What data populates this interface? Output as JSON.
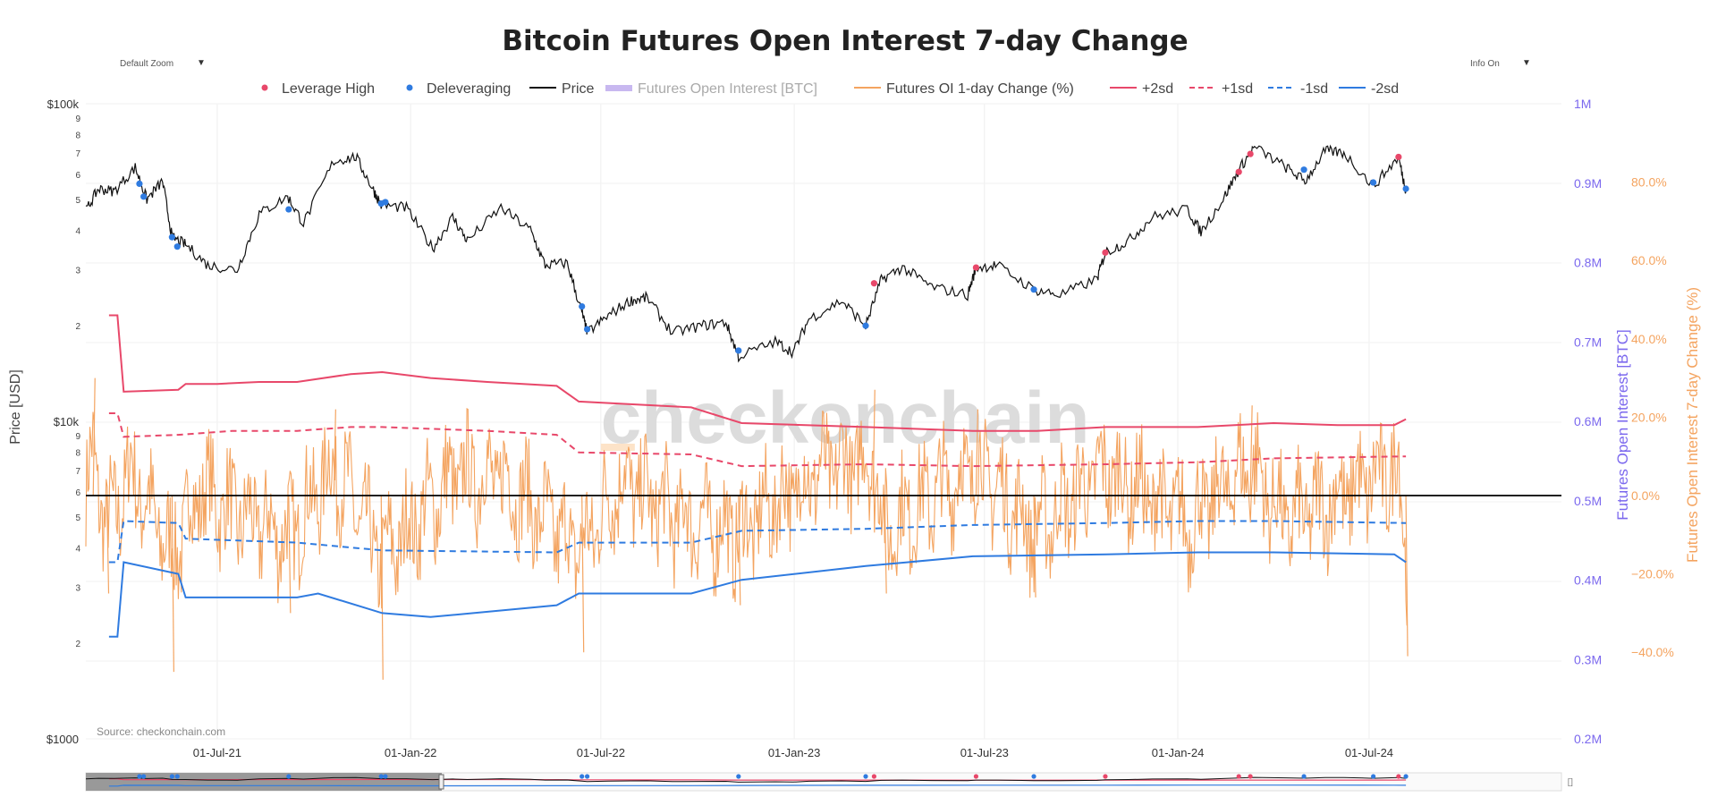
{
  "controls": {
    "zoom_label": "Default Zoom",
    "info_label": "Info On",
    "arrow": "▼"
  },
  "chart_data": {
    "type": "line",
    "title": "Bitcoin Futures Open Interest 7-day Change",
    "source": "Source: checkonchain.com",
    "watermark": "checkonchain",
    "x_ticks": [
      "01-Jul-21",
      "01-Jan-22",
      "01-Jul-22",
      "01-Jan-23",
      "01-Jul-23",
      "01-Jan-24",
      "01-Jul-24"
    ],
    "x_range": [
      "2021-02-26",
      "2024-12-31"
    ],
    "axes": {
      "price": {
        "title": "Price [USD]",
        "scale": "log",
        "range": [
          1000,
          100000
        ],
        "major_labels": [
          "$1000",
          "$10k",
          "$100k"
        ],
        "minor_labels": [
          "2",
          "3",
          "4",
          "5",
          "6",
          "7",
          "8",
          "9"
        ]
      },
      "oi": {
        "title": "Futures Open Interest [BTC]",
        "range": [
          "0.2M",
          "1M"
        ],
        "labels": [
          "0.2M",
          "0.3M",
          "0.4M",
          "0.5M",
          "0.6M",
          "0.7M",
          "0.8M",
          "0.9M",
          "1M"
        ]
      },
      "change": {
        "title": "Futures Open Interest 7-day Change (%)",
        "range": [
          -50,
          80
        ],
        "labels": [
          "−40.0%",
          "−20.0%",
          "0.0%",
          "20.0%",
          "40.0%",
          "60.0%",
          "80.0%"
        ]
      }
    },
    "legend": [
      {
        "name": "Leverage High",
        "kind": "marker",
        "color": "#e8486a"
      },
      {
        "name": "Deleveraging",
        "kind": "marker",
        "color": "#2f7be0"
      },
      {
        "name": "Price",
        "kind": "line",
        "color": "#111111"
      },
      {
        "name": "Futures Open Interest [BTC]",
        "kind": "band",
        "color": "#c8b8f0"
      },
      {
        "name": "Futures OI 1-day Change (%)",
        "kind": "line",
        "color": "#f4a460"
      },
      {
        "name": "+2sd",
        "kind": "line",
        "color": "#e8486a"
      },
      {
        "name": "+1sd",
        "kind": "dash",
        "color": "#e8486a"
      },
      {
        "name": "-1sd",
        "kind": "dash",
        "color": "#2f7be0"
      },
      {
        "name": "-2sd",
        "kind": "line",
        "color": "#2f7be0"
      }
    ],
    "price_series": [
      [
        "2021-02-26",
        46000
      ],
      [
        "2021-03-10",
        54000
      ],
      [
        "2021-03-25",
        53000
      ],
      [
        "2021-04-14",
        63000
      ],
      [
        "2021-04-25",
        50000
      ],
      [
        "2021-05-10",
        57000
      ],
      [
        "2021-05-19",
        38000
      ],
      [
        "2021-06-01",
        36000
      ],
      [
        "2021-06-22",
        31000
      ],
      [
        "2021-07-20",
        30000
      ],
      [
        "2021-08-10",
        45000
      ],
      [
        "2021-09-06",
        51000
      ],
      [
        "2021-09-21",
        42000
      ],
      [
        "2021-10-20",
        66000
      ],
      [
        "2021-11-10",
        68000
      ],
      [
        "2021-11-26",
        54000
      ],
      [
        "2021-12-04",
        48000
      ],
      [
        "2021-12-28",
        47000
      ],
      [
        "2022-01-22",
        35000
      ],
      [
        "2022-02-10",
        44000
      ],
      [
        "2022-02-24",
        37000
      ],
      [
        "2022-03-28",
        47000
      ],
      [
        "2022-04-25",
        40000
      ],
      [
        "2022-05-09",
        31000
      ],
      [
        "2022-05-30",
        31500
      ],
      [
        "2022-06-13",
        22000
      ],
      [
        "2022-06-18",
        19000
      ],
      [
        "2022-07-08",
        21500
      ],
      [
        "2022-07-29",
        24000
      ],
      [
        "2022-08-14",
        24500
      ],
      [
        "2022-09-07",
        19000
      ],
      [
        "2022-10-05",
        20000
      ],
      [
        "2022-10-28",
        20500
      ],
      [
        "2022-11-09",
        16000
      ],
      [
        "2022-12-14",
        17800
      ],
      [
        "2022-12-31",
        16500
      ],
      [
        "2023-01-15",
        21000
      ],
      [
        "2023-02-15",
        24000
      ],
      [
        "2023-03-10",
        20000
      ],
      [
        "2023-03-25",
        28000
      ],
      [
        "2023-04-14",
        30500
      ],
      [
        "2023-05-12",
        26500
      ],
      [
        "2023-06-15",
        25000
      ],
      [
        "2023-06-23",
        30500
      ],
      [
        "2023-07-13",
        31000
      ],
      [
        "2023-08-17",
        26000
      ],
      [
        "2023-09-11",
        25000
      ],
      [
        "2023-10-16",
        28000
      ],
      [
        "2023-10-24",
        34000
      ],
      [
        "2023-11-15",
        37000
      ],
      [
        "2023-12-08",
        44000
      ],
      [
        "2024-01-10",
        46500
      ],
      [
        "2024-01-23",
        39500
      ],
      [
        "2024-02-13",
        50000
      ],
      [
        "2024-02-28",
        62000
      ],
      [
        "2024-03-14",
        73000
      ],
      [
        "2024-04-13",
        63000
      ],
      [
        "2024-05-01",
        57000
      ],
      [
        "2024-05-20",
        71000
      ],
      [
        "2024-06-07",
        70000
      ],
      [
        "2024-07-05",
        55000
      ],
      [
        "2024-07-29",
        68000
      ],
      [
        "2024-08-05",
        53000
      ]
    ],
    "leverage_high_markers": [
      [
        "2023-03-18",
        27200
      ],
      [
        "2023-06-23",
        30500
      ],
      [
        "2023-10-24",
        34000
      ],
      [
        "2024-02-28",
        61000
      ],
      [
        "2024-03-10",
        69500
      ],
      [
        "2024-07-29",
        68000
      ]
    ],
    "deleveraging_markers": [
      [
        "2021-04-18",
        56000
      ],
      [
        "2021-04-22",
        51000
      ],
      [
        "2021-05-19",
        38000
      ],
      [
        "2021-05-24",
        35500
      ],
      [
        "2021-09-07",
        46500
      ],
      [
        "2021-12-04",
        48500
      ],
      [
        "2021-12-08",
        49000
      ],
      [
        "2022-06-13",
        23000
      ],
      [
        "2022-06-18",
        19500
      ],
      [
        "2022-11-09",
        16700
      ],
      [
        "2023-03-10",
        20000
      ],
      [
        "2023-08-17",
        26000
      ],
      [
        "2024-04-30",
        62000
      ],
      [
        "2024-07-05",
        56500
      ],
      [
        "2024-08-05",
        54000
      ]
    ],
    "sd_bands": {
      "plus2": [
        [
          "2021-03-20",
          46
        ],
        [
          "2021-03-28",
          46
        ],
        [
          "2021-04-03",
          26.5
        ],
        [
          "2021-05-25",
          27
        ],
        [
          "2021-06-01",
          28.5
        ],
        [
          "2021-07-01",
          28.5
        ],
        [
          "2021-08-10",
          29
        ],
        [
          "2021-09-15",
          29
        ],
        [
          "2021-11-05",
          31
        ],
        [
          "2021-12-05",
          31.5
        ],
        [
          "2022-01-20",
          30
        ],
        [
          "2022-03-15",
          29
        ],
        [
          "2022-05-20",
          28
        ],
        [
          "2022-06-10",
          24
        ],
        [
          "2022-09-25",
          22.5
        ],
        [
          "2022-11-12",
          18.5
        ],
        [
          "2023-03-10",
          17.5
        ],
        [
          "2023-06-20",
          16.5
        ],
        [
          "2023-08-20",
          16.5
        ],
        [
          "2023-10-25",
          17.5
        ],
        [
          "2024-01-20",
          17.5
        ],
        [
          "2024-04-01",
          18.5
        ],
        [
          "2024-06-01",
          18
        ],
        [
          "2024-07-25",
          18
        ],
        [
          "2024-08-05",
          19.5
        ]
      ],
      "plus1": [
        [
          "2021-03-20",
          21
        ],
        [
          "2021-03-28",
          21
        ],
        [
          "2021-04-03",
          15
        ],
        [
          "2021-05-25",
          15.5
        ],
        [
          "2021-07-15",
          16.5
        ],
        [
          "2021-09-15",
          16.5
        ],
        [
          "2021-11-05",
          17.5
        ],
        [
          "2021-12-05",
          17.5
        ],
        [
          "2022-03-15",
          16.5
        ],
        [
          "2022-05-20",
          15.5
        ],
        [
          "2022-06-10",
          11
        ],
        [
          "2022-09-25",
          10.5
        ],
        [
          "2022-11-12",
          7.5
        ],
        [
          "2023-03-10",
          8
        ],
        [
          "2023-06-20",
          7.5
        ],
        [
          "2023-10-25",
          8
        ],
        [
          "2024-01-20",
          8.5
        ],
        [
          "2024-04-01",
          9.5
        ],
        [
          "2024-08-05",
          10
        ]
      ],
      "minus1": [
        [
          "2021-03-20",
          -17
        ],
        [
          "2021-03-28",
          -17
        ],
        [
          "2021-04-03",
          -6.5
        ],
        [
          "2021-05-25",
          -7
        ],
        [
          "2021-06-01",
          -11
        ],
        [
          "2021-09-15",
          -12
        ],
        [
          "2021-12-05",
          -14
        ],
        [
          "2022-05-20",
          -14.5
        ],
        [
          "2022-06-10",
          -12
        ],
        [
          "2022-09-25",
          -12
        ],
        [
          "2022-11-12",
          -9
        ],
        [
          "2023-03-10",
          -8.5
        ],
        [
          "2023-06-20",
          -7.5
        ],
        [
          "2023-10-25",
          -7
        ],
        [
          "2024-01-20",
          -6.5
        ],
        [
          "2024-04-01",
          -6.5
        ],
        [
          "2024-08-05",
          -7
        ]
      ],
      "minus2": [
        [
          "2021-03-20",
          -36
        ],
        [
          "2021-03-28",
          -36
        ],
        [
          "2021-04-03",
          -17
        ],
        [
          "2021-05-25",
          -20
        ],
        [
          "2021-06-01",
          -26
        ],
        [
          "2021-09-15",
          -26
        ],
        [
          "2021-10-05",
          -25
        ],
        [
          "2021-12-05",
          -30
        ],
        [
          "2022-01-20",
          -31
        ],
        [
          "2022-05-20",
          -28
        ],
        [
          "2022-06-10",
          -25
        ],
        [
          "2022-09-25",
          -25
        ],
        [
          "2022-11-12",
          -21.5
        ],
        [
          "2023-03-10",
          -18
        ],
        [
          "2023-06-20",
          -15.5
        ],
        [
          "2023-10-25",
          -15
        ],
        [
          "2024-01-20",
          -14.5
        ],
        [
          "2024-04-01",
          -14.5
        ],
        [
          "2024-07-25",
          -15
        ],
        [
          "2024-08-05",
          -17
        ]
      ]
    },
    "oi_change_shape": [
      [
        "2021-02-26",
        0
      ],
      [
        "2021-03-05",
        30
      ],
      [
        "2021-03-18",
        -25
      ],
      [
        "2021-04-10",
        18
      ],
      [
        "2021-05-19",
        -45
      ],
      [
        "2021-06-15",
        5
      ],
      [
        "2021-07-20",
        -15
      ],
      [
        "2021-09-07",
        -30
      ],
      [
        "2021-10-20",
        22
      ],
      [
        "2021-12-04",
        -47
      ],
      [
        "2022-02-10",
        12
      ],
      [
        "2022-03-28",
        15
      ],
      [
        "2022-05-10",
        -20
      ],
      [
        "2022-06-13",
        -40
      ],
      [
        "2022-07-20",
        12
      ],
      [
        "2022-09-07",
        -15
      ],
      [
        "2022-11-09",
        -28
      ],
      [
        "2023-01-15",
        14
      ],
      [
        "2023-03-17",
        27
      ],
      [
        "2023-03-28",
        -25
      ],
      [
        "2023-06-23",
        22
      ],
      [
        "2023-08-17",
        -26
      ],
      [
        "2023-10-24",
        18
      ],
      [
        "2024-01-12",
        -20
      ],
      [
        "2024-03-10",
        23
      ],
      [
        "2024-04-13",
        -20
      ],
      [
        "2024-07-29",
        20
      ],
      [
        "2024-08-05",
        -41
      ]
    ],
    "minimap_label": "⌷"
  }
}
